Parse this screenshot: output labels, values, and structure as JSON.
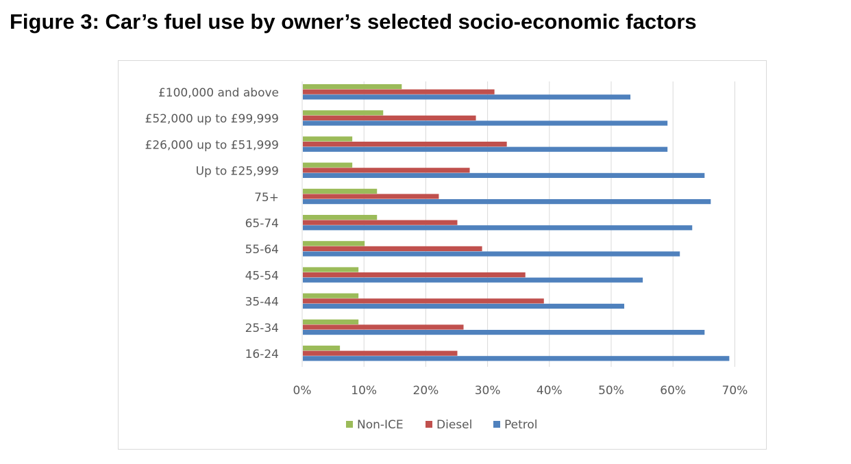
{
  "title": "Figure 3: Car’s fuel use by owner’s selected socio-economic factors",
  "chart_data": {
    "type": "bar",
    "orientation": "horizontal",
    "categories": [
      "£100,000 and above",
      "£52,000 up to £99,999",
      "£26,000 up to £51,999",
      "Up to £25,999",
      "75+",
      "65-74",
      "55-64",
      "45-54",
      "35-44",
      "25-34",
      "16-24"
    ],
    "series": [
      {
        "name": "Non-ICE",
        "color": "#9bbb59",
        "values": [
          16,
          13,
          8,
          8,
          12,
          12,
          10,
          9,
          9,
          9,
          6
        ]
      },
      {
        "name": "Diesel",
        "color": "#c0504d",
        "values": [
          31,
          28,
          33,
          27,
          22,
          25,
          29,
          36,
          39,
          26,
          25
        ]
      },
      {
        "name": "Petrol",
        "color": "#4f81bd",
        "values": [
          53,
          59,
          59,
          65,
          66,
          63,
          61,
          55,
          52,
          65,
          69
        ]
      }
    ],
    "xlim": [
      0,
      70
    ],
    "x_ticks": [
      0,
      10,
      20,
      30,
      40,
      50,
      60,
      70
    ],
    "x_tick_labels": [
      "0%",
      "10%",
      "20%",
      "30%",
      "40%",
      "50%",
      "60%",
      "70%"
    ],
    "grid": "vertical",
    "legend_position": "bottom",
    "xlabel": "",
    "ylabel": ""
  }
}
